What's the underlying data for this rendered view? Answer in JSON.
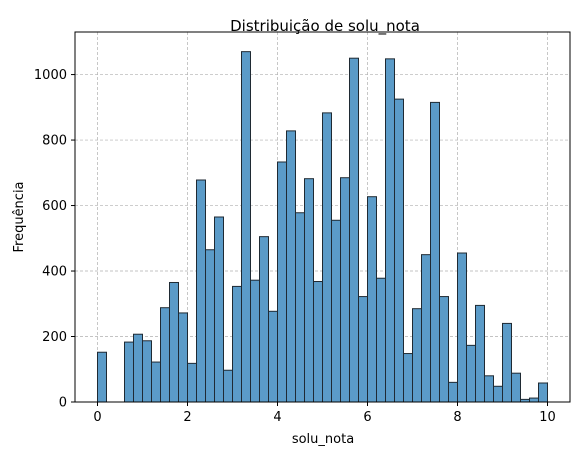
{
  "chart_data": {
    "type": "bar",
    "title": "Distribuição de solu_nota",
    "xlabel": "solu_nota",
    "ylabel": "Frequência",
    "xlim": [
      -0.5,
      10.5
    ],
    "ylim": [
      0,
      1130
    ],
    "xticks": [
      0,
      2,
      4,
      6,
      8,
      10
    ],
    "xtick_labels": [
      "0",
      "2",
      "4",
      "6",
      "8",
      "10"
    ],
    "yticks": [
      0,
      200,
      400,
      600,
      800,
      1000
    ],
    "ytick_labels": [
      "0",
      "200",
      "400",
      "600",
      "800",
      "1000"
    ],
    "grid": true,
    "bin_width": 0.2,
    "bin_starts": [
      0.0,
      0.2,
      0.4,
      0.6,
      0.8,
      1.0,
      1.2,
      1.4,
      1.6,
      1.8,
      2.0,
      2.2,
      2.4,
      2.6,
      2.8,
      3.0,
      3.2,
      3.4,
      3.6,
      3.8,
      4.0,
      4.2,
      4.4,
      4.6,
      4.8,
      5.0,
      5.2,
      5.4,
      5.6,
      5.8,
      6.0,
      6.2,
      6.4,
      6.6,
      6.8,
      7.0,
      7.2,
      7.4,
      7.6,
      7.8,
      8.0,
      8.2,
      8.4,
      8.6,
      8.8,
      9.0,
      9.2,
      9.4,
      9.6,
      9.8
    ],
    "values": [
      152,
      0,
      0,
      183,
      207,
      187,
      122,
      288,
      365,
      272,
      118,
      678,
      465,
      565,
      97,
      353,
      1070,
      372,
      505,
      277,
      733,
      828,
      578,
      682,
      368,
      883,
      555,
      685,
      1050,
      322,
      627,
      378,
      1048,
      925,
      148,
      285,
      450,
      915,
      322,
      60,
      455,
      173,
      295,
      80,
      48,
      240,
      88,
      8,
      12,
      58
    ]
  }
}
